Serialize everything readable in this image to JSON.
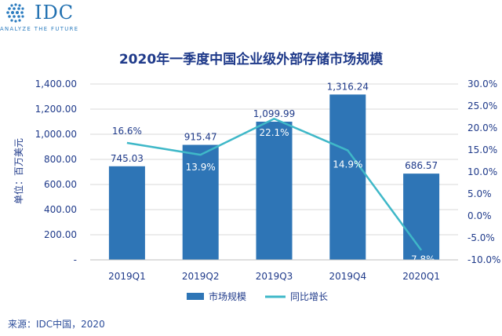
{
  "logo": {
    "text": "IDC",
    "tagline": "ANALYZE THE FUTURE"
  },
  "source_note": "来源：IDC中国，2020",
  "colors": {
    "bar": "#2e75b6",
    "line": "#3fb8c8",
    "title": "#1f3a8a",
    "axis_text": "#1f3a8a",
    "grid": "#d9d9d9"
  },
  "chart_data": {
    "type": "bar",
    "title": "2020年一季度中国企业级外部存储市场规模",
    "ylabel": "单位：百万美元",
    "categories": [
      "2019Q1",
      "2019Q2",
      "2019Q3",
      "2019Q4",
      "2020Q1"
    ],
    "series": [
      {
        "name": "市场规模",
        "type": "bar",
        "axis": "left",
        "values": [
          745.03,
          915.47,
          1099.99,
          1316.24,
          686.57
        ],
        "labels": [
          "745.03",
          "915.47",
          "1,099.99",
          "1,316.24",
          "686.57"
        ]
      },
      {
        "name": "同比增长",
        "type": "line",
        "axis": "right",
        "values": [
          16.6,
          13.9,
          22.1,
          14.9,
          -7.8
        ],
        "labels": [
          "16.6%",
          "13.9%",
          "22.1%",
          "14.9%",
          "-7.8%"
        ]
      }
    ],
    "y_left": {
      "min": 0,
      "max": 1400,
      "ticks": [
        0,
        200,
        400,
        600,
        800,
        1000,
        1200,
        1400
      ],
      "tick_labels": [
        "-",
        "200.00",
        "400.00",
        "600.00",
        "800.00",
        "1,000.00",
        "1,200.00",
        "1,400.00"
      ]
    },
    "y_right": {
      "min": -10,
      "max": 30,
      "ticks": [
        -10,
        -5,
        0,
        5,
        10,
        15,
        20,
        25,
        30
      ],
      "tick_labels": [
        "-10.0%",
        "-5.0%",
        "0.0%",
        "5.0%",
        "10.0%",
        "15.0%",
        "20.0%",
        "25.0%",
        "30.0%"
      ]
    },
    "grid": true,
    "legend_position": "bottom"
  }
}
